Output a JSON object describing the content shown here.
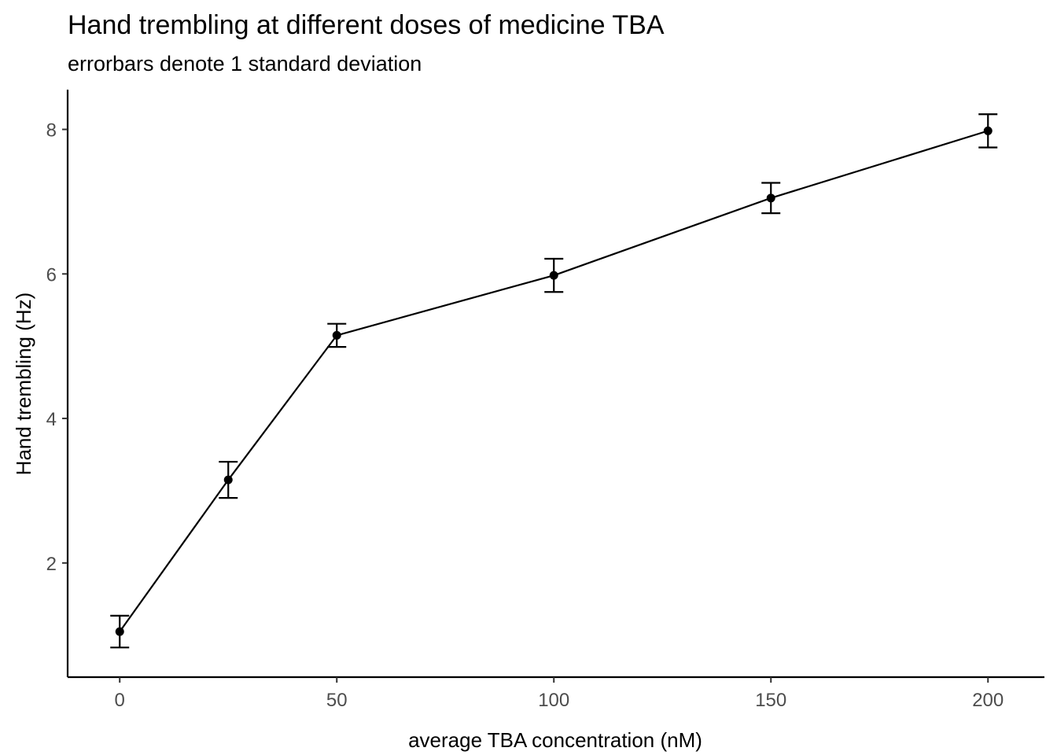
{
  "chart_data": {
    "type": "line",
    "title": "Hand trembling at different doses of medicine TBA",
    "subtitle": "errorbars denote 1 standard deviation",
    "xlabel": "average TBA concentration (nM)",
    "ylabel": "Hand trembling (Hz)",
    "xlim": [
      -12,
      213
    ],
    "ylim": [
      0.42,
      8.55
    ],
    "x_ticks": [
      0,
      50,
      100,
      150,
      200
    ],
    "y_ticks": [
      2,
      4,
      6,
      8
    ],
    "grid": false,
    "legend": "none",
    "series": [
      {
        "x": [
          0,
          25,
          50,
          100,
          150,
          200
        ],
        "y": [
          1.05,
          3.15,
          5.15,
          5.98,
          7.05,
          7.98
        ],
        "sd": [
          0.22,
          0.25,
          0.16,
          0.23,
          0.21,
          0.23
        ]
      }
    ],
    "colors": {
      "line": "#000000",
      "points": "#000000",
      "axis": "#000000",
      "tick_label": "#4d4d4d"
    }
  }
}
